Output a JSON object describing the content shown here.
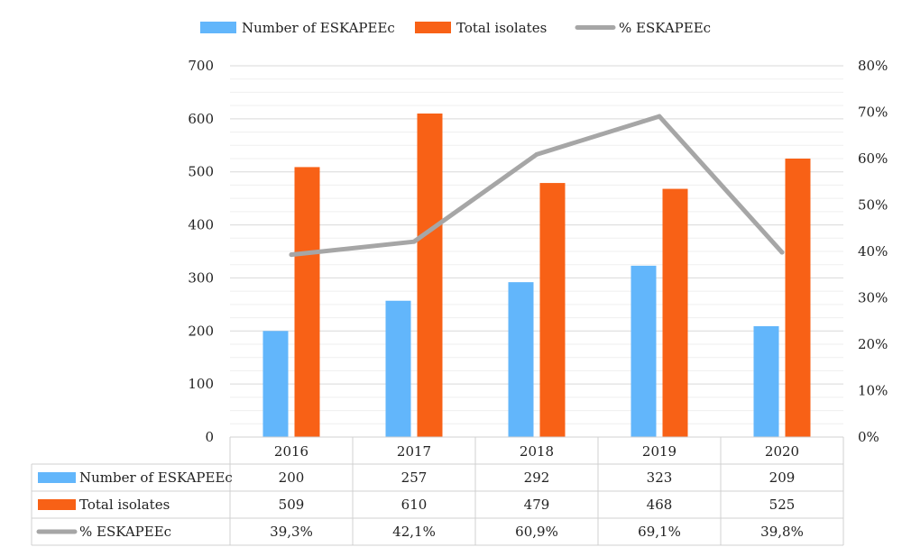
{
  "chart_data": {
    "type": "bar",
    "categories": [
      "2016",
      "2017",
      "2018",
      "2019",
      "2020"
    ],
    "series": [
      {
        "name": "Number of ESKAPEEc",
        "type": "bar",
        "axis": "left",
        "color": "#62B6FB",
        "values": [
          200,
          257,
          292,
          323,
          209
        ],
        "labels": [
          "200",
          "257",
          "292",
          "323",
          "209"
        ]
      },
      {
        "name": "Total isolates",
        "type": "bar",
        "axis": "left",
        "color": "#F86116",
        "values": [
          509,
          610,
          479,
          468,
          525
        ],
        "labels": [
          "509",
          "610",
          "479",
          "468",
          "525"
        ]
      },
      {
        "name": "% ESKAPEEc",
        "type": "line",
        "axis": "right",
        "color": "#A6A6A6",
        "values": [
          39.3,
          42.1,
          60.9,
          69.1,
          39.8
        ],
        "labels": [
          "39,3%",
          "42,1%",
          "60,9%",
          "69,1%",
          "39,8%"
        ]
      }
    ],
    "y_left": {
      "min": 0,
      "max": 700,
      "ticks": [
        "0",
        "100",
        "200",
        "300",
        "400",
        "500",
        "600",
        "700"
      ]
    },
    "y_right": {
      "min": 0,
      "max": 80,
      "ticks": [
        "0%",
        "10%",
        "20%",
        "30%",
        "40%",
        "50%",
        "60%",
        "70%",
        "80%"
      ]
    },
    "grid": true,
    "legend_position": "top",
    "data_table": true,
    "title": "",
    "xlabel": "",
    "ylabel": ""
  }
}
